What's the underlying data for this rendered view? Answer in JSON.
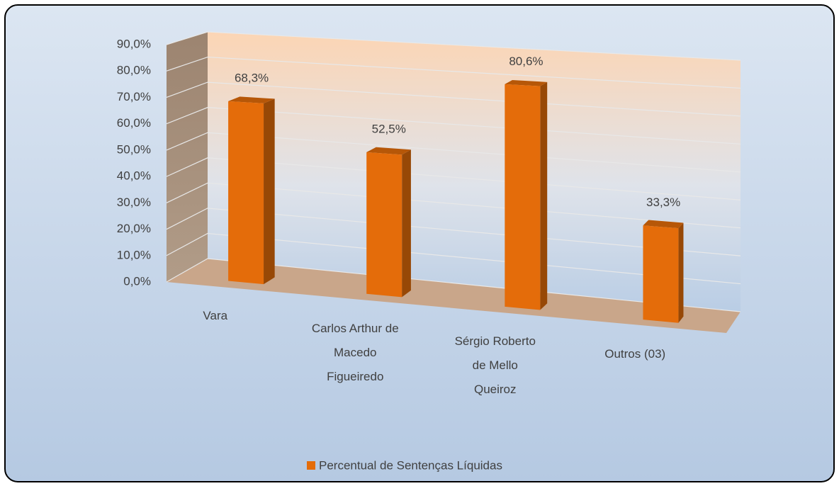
{
  "chart_data": {
    "type": "bar3d",
    "categories": [
      [
        "Vara"
      ],
      [
        "Carlos Arthur de",
        "Macedo",
        "Figueiredo"
      ],
      [
        "Sérgio Roberto",
        "de Mello",
        "Queiroz"
      ],
      [
        "Outros (03)"
      ]
    ],
    "series": [
      {
        "name": "Percentual de Sentenças Líquidas",
        "color": "#e46c0a",
        "values": [
          68.3,
          52.5,
          80.6,
          33.3
        ],
        "value_labels": [
          "68,3%",
          "52,5%",
          "80,6%",
          "33,3%"
        ]
      }
    ],
    "ylim": [
      0,
      90
    ],
    "yticks": [
      {
        "value": 0,
        "label": "0,0%"
      },
      {
        "value": 10,
        "label": "10,0%"
      },
      {
        "value": 20,
        "label": "20,0%"
      },
      {
        "value": 30,
        "label": "30,0%"
      },
      {
        "value": 40,
        "label": "40,0%"
      },
      {
        "value": 50,
        "label": "50,0%"
      },
      {
        "value": 60,
        "label": "60,0%"
      },
      {
        "value": 70,
        "label": "70,0%"
      },
      {
        "value": 80,
        "label": "80,0%"
      },
      {
        "value": 90,
        "label": "90,0%"
      }
    ],
    "grid": true,
    "legend": "bottom"
  }
}
